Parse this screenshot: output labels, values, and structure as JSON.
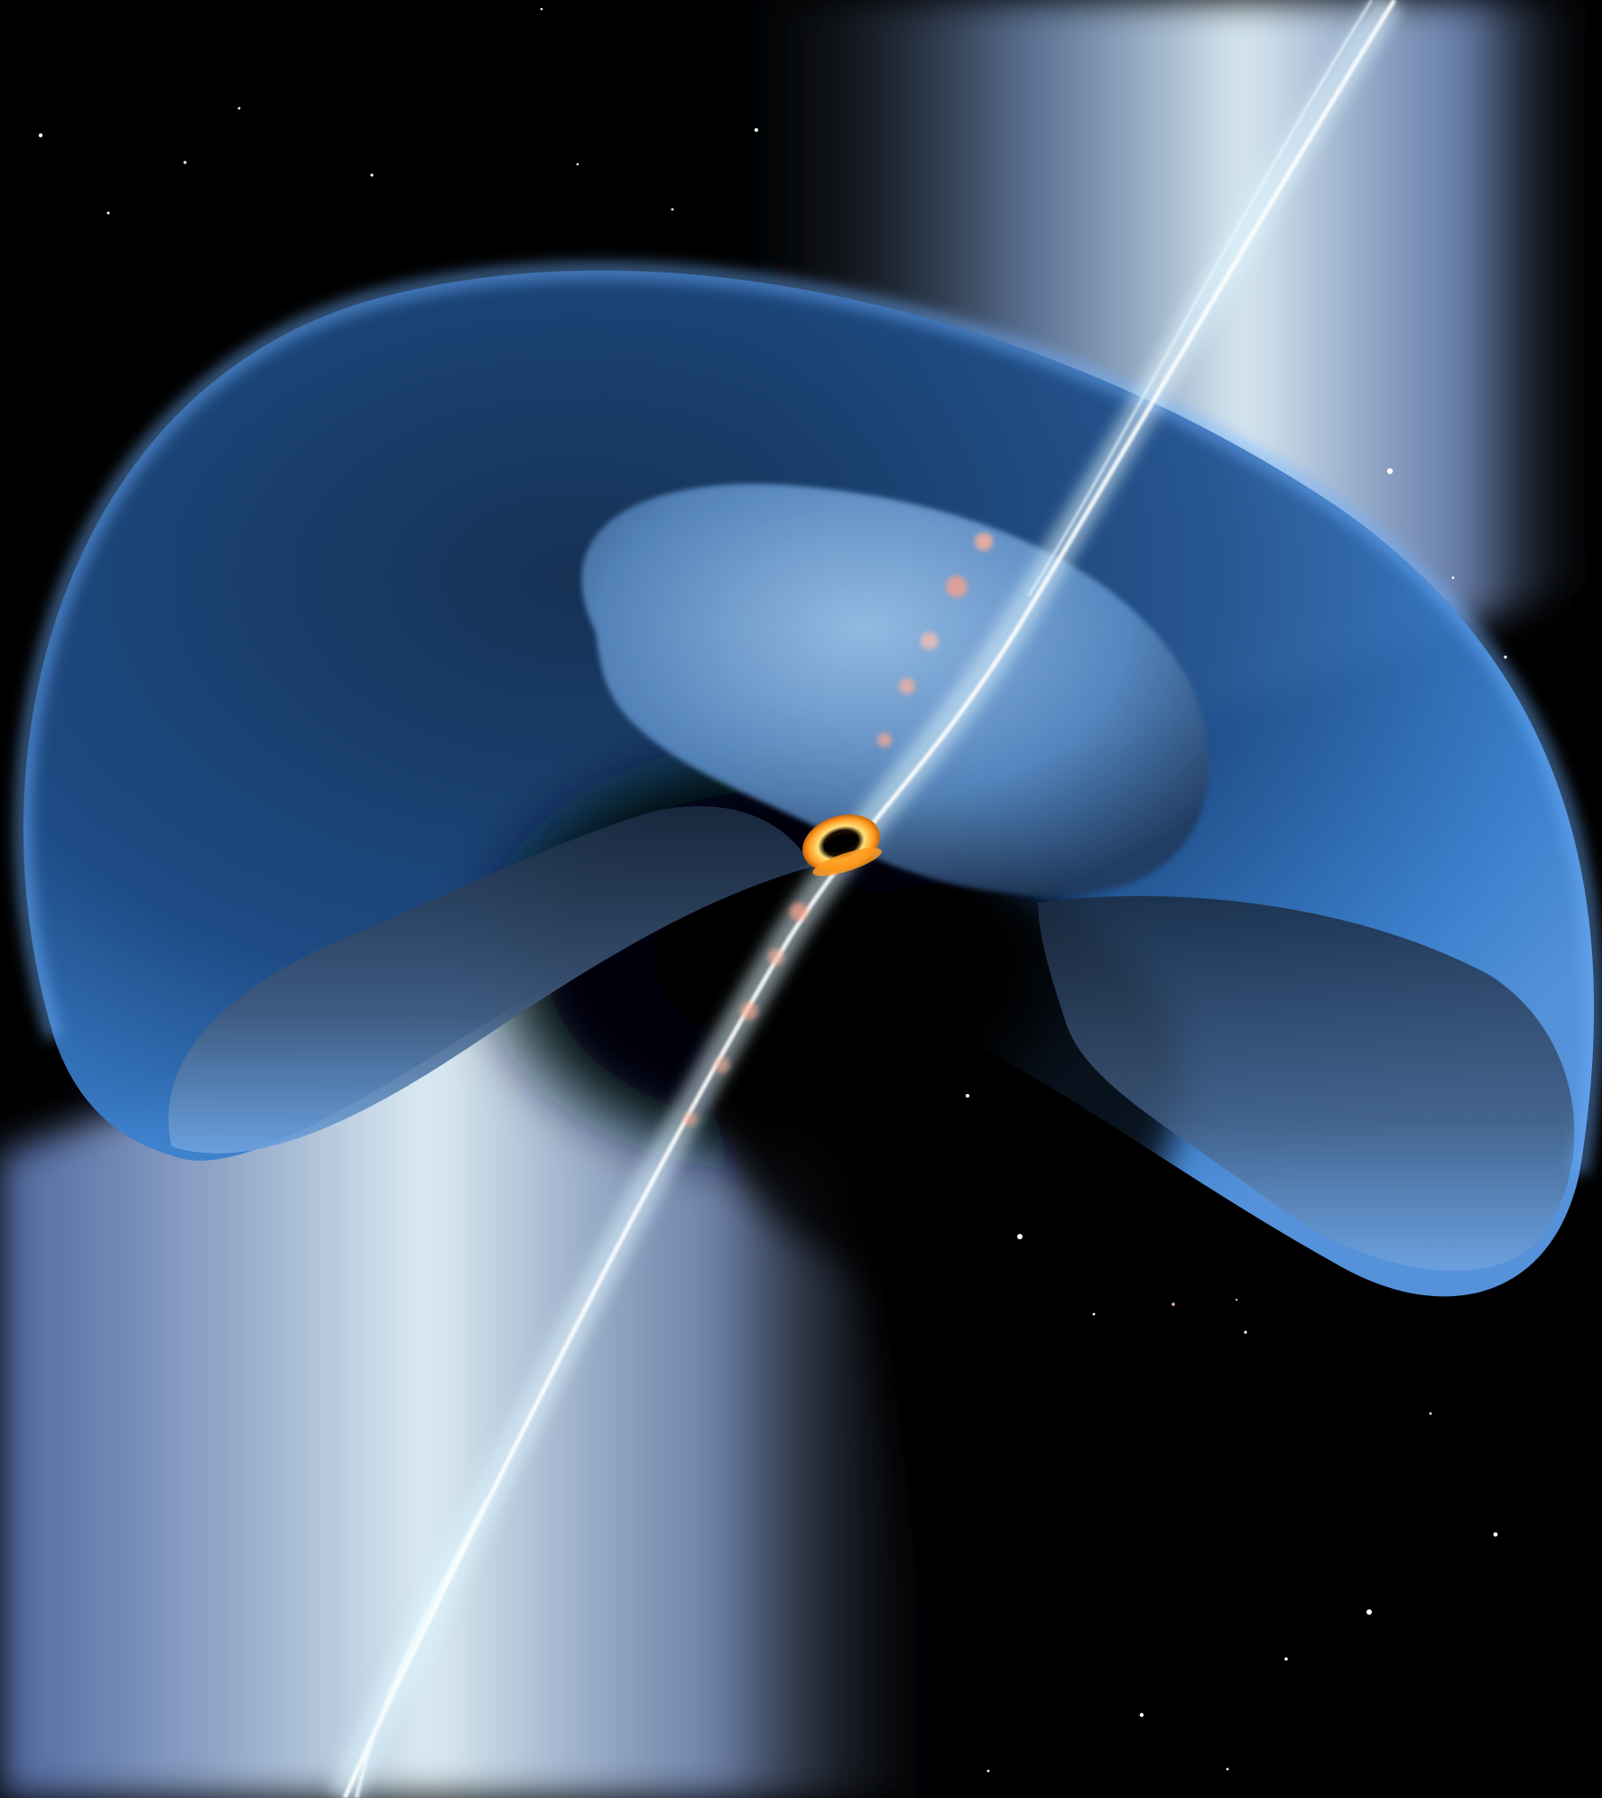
{
  "image": {
    "frame_color": "#2f6fb3",
    "palette": {
      "space": "#000000",
      "cone_light": "#d9f4ff",
      "cone_mid": "#8fb4f0",
      "shell_edge": "#4a8fe0",
      "shell_dark": "#0a1626",
      "inner_shell": "#7fb2ea",
      "jet_core": "#f2fbff",
      "jet_knots": "#ffb199",
      "accretion_ring": "#ffb347"
    }
  }
}
